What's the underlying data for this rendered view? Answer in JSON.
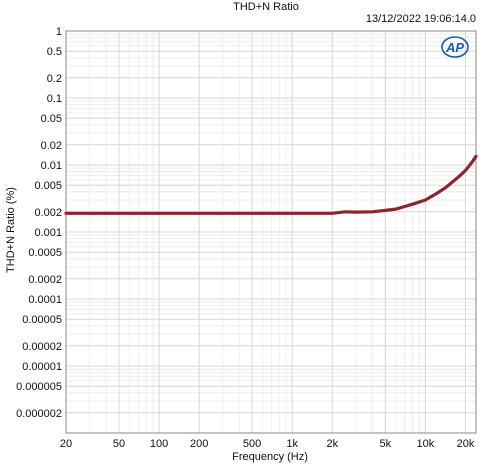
{
  "chart_data": {
    "type": "line",
    "title": "THD+N Ratio",
    "timestamp": "13/12/2022 19:06:14.0",
    "xlabel": "Frequency (Hz)",
    "ylabel": "THD+N Ratio (%)",
    "x_scale": "log",
    "y_scale": "log",
    "xlim": [
      20,
      24000
    ],
    "ylim": [
      1e-06,
      1
    ],
    "grid": true,
    "x_ticks": [
      {
        "v": 20,
        "label": "20"
      },
      {
        "v": 50,
        "label": "50"
      },
      {
        "v": 100,
        "label": "100"
      },
      {
        "v": 200,
        "label": "200"
      },
      {
        "v": 500,
        "label": "500"
      },
      {
        "v": 1000,
        "label": "1k"
      },
      {
        "v": 2000,
        "label": "2k"
      },
      {
        "v": 5000,
        "label": "5k"
      },
      {
        "v": 10000,
        "label": "10k"
      },
      {
        "v": 20000,
        "label": "20k"
      }
    ],
    "y_ticks": [
      {
        "v": 1,
        "label": "1"
      },
      {
        "v": 0.5,
        "label": "0.5"
      },
      {
        "v": 0.2,
        "label": "0.2"
      },
      {
        "v": 0.1,
        "label": "0.1"
      },
      {
        "v": 0.05,
        "label": "0.05"
      },
      {
        "v": 0.02,
        "label": "0.02"
      },
      {
        "v": 0.01,
        "label": "0.01"
      },
      {
        "v": 0.005,
        "label": "0.005"
      },
      {
        "v": 0.002,
        "label": "0.002"
      },
      {
        "v": 0.001,
        "label": "0.001"
      },
      {
        "v": 0.0005,
        "label": "0.0005"
      },
      {
        "v": 0.0002,
        "label": "0.0002"
      },
      {
        "v": 0.0001,
        "label": "0.0001"
      },
      {
        "v": 5e-05,
        "label": "0.00005"
      },
      {
        "v": 2e-05,
        "label": "0.00002"
      },
      {
        "v": 1e-05,
        "label": "0.00001"
      },
      {
        "v": 5e-06,
        "label": "0.000005"
      },
      {
        "v": 2e-06,
        "label": "0.000002"
      }
    ],
    "series": [
      {
        "color": "#8b2530",
        "x": [
          20,
          50,
          100,
          200,
          500,
          1000,
          1500,
          2000,
          2500,
          3000,
          4000,
          5000,
          6000,
          7000,
          8000,
          10000,
          12000,
          14000,
          16000,
          18000,
          20000,
          22000,
          24000
        ],
        "y": [
          0.0019,
          0.0019,
          0.0019,
          0.0019,
          0.0019,
          0.0019,
          0.0019,
          0.0019,
          0.002,
          0.00198,
          0.002,
          0.0021,
          0.0022,
          0.0024,
          0.0026,
          0.003,
          0.0037,
          0.0045,
          0.0056,
          0.0068,
          0.0083,
          0.0105,
          0.0135
        ]
      }
    ]
  },
  "logo": {
    "text": "AP",
    "color": "#1d5aa6"
  },
  "colors": {
    "grid_major": "#d9d9d9",
    "grid_minor": "#eeeeee",
    "frame": "#8a8a8a"
  }
}
